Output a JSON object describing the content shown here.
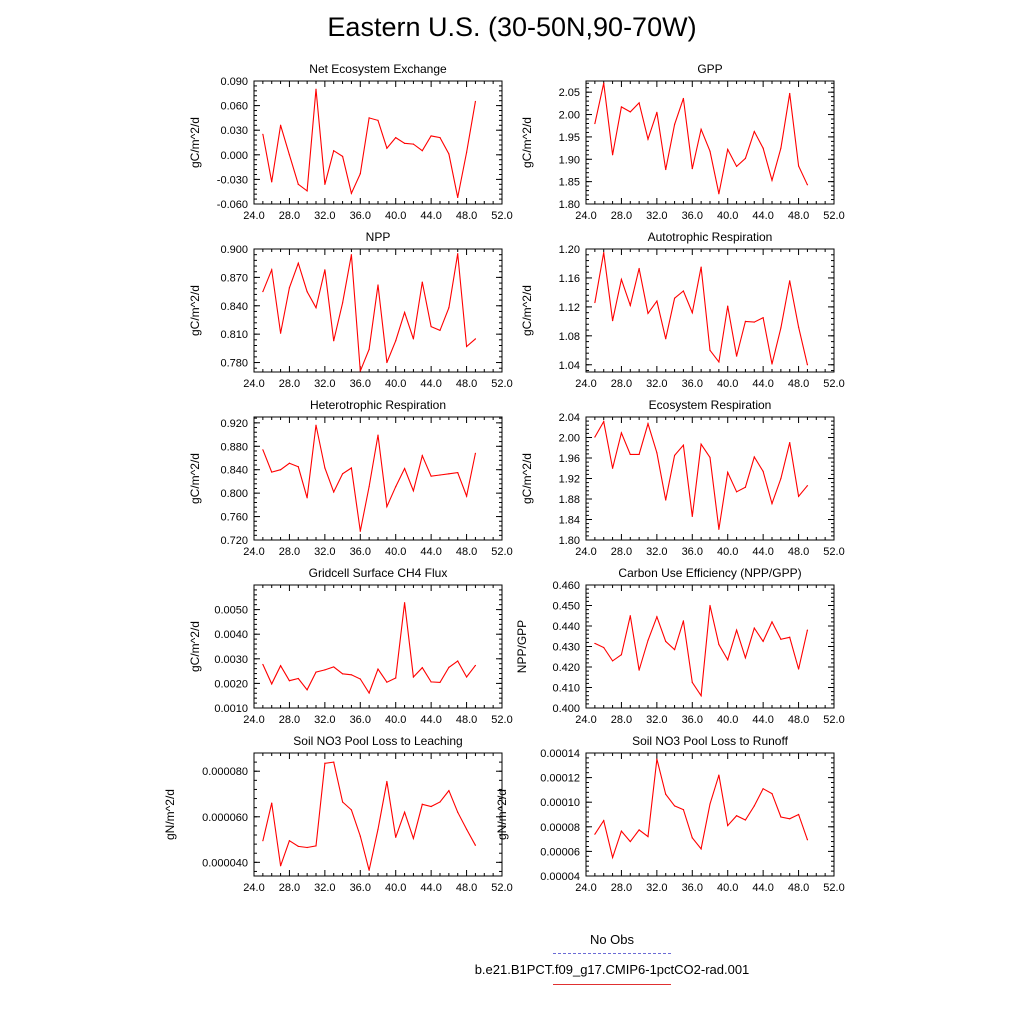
{
  "title": "Eastern U.S. (30-50N,90-70W)",
  "legend": {
    "obs_label": "No Obs",
    "obs_color": "#6b6bd6",
    "model_label": "b.e21.B1PCT.f09_g17.CMIP6-1pctCO2-rad.001",
    "model_color": "#ff0000"
  },
  "chart_data": [
    {
      "type": "line",
      "title": "Net Ecosystem Exchange",
      "ylabel": "gC/m^2/d",
      "xlim": [
        24,
        52
      ],
      "ylim": [
        -0.06,
        0.09
      ],
      "x_ticks": [
        "24.0",
        "28.0",
        "32.0",
        "36.0",
        "40.0",
        "44.0",
        "48.0",
        "52.0"
      ],
      "y_ticks": [
        "-0.060",
        "-0.030",
        "0.000",
        "0.030",
        "0.060",
        "0.090"
      ],
      "x": [
        25,
        26,
        27,
        28,
        29,
        30,
        31,
        32,
        33,
        34,
        35,
        36,
        37,
        38,
        39,
        40,
        41,
        42,
        43,
        44,
        45,
        46,
        47,
        48,
        49
      ],
      "values": [
        0.025,
        -0.033,
        0.036,
        0.0,
        -0.036,
        -0.044,
        0.08,
        -0.036,
        0.005,
        -0.002,
        -0.047,
        -0.023,
        0.045,
        0.042,
        0.008,
        0.021,
        0.014,
        0.013,
        0.005,
        0.023,
        0.021,
        0.001,
        -0.052,
        0.003,
        0.065
      ]
    },
    {
      "type": "line",
      "title": "GPP",
      "ylabel": "gC/m^2/d",
      "xlim": [
        24,
        52
      ],
      "ylim": [
        1.8,
        2.075
      ],
      "x_ticks": [
        "24.0",
        "28.0",
        "32.0",
        "36.0",
        "40.0",
        "44.0",
        "48.0",
        "52.0"
      ],
      "y_ticks": [
        "1.80",
        "1.85",
        "1.90",
        "1.95",
        "2.00",
        "2.05"
      ],
      "x": [
        25,
        26,
        27,
        28,
        29,
        30,
        31,
        32,
        33,
        34,
        35,
        36,
        37,
        38,
        39,
        40,
        41,
        42,
        43,
        44,
        45,
        46,
        47,
        48,
        49
      ],
      "values": [
        1.98,
        2.07,
        1.91,
        2.017,
        2.006,
        2.026,
        1.945,
        2.005,
        1.877,
        1.978,
        2.036,
        1.879,
        1.967,
        1.918,
        1.823,
        1.922,
        1.884,
        1.902,
        1.962,
        1.925,
        1.853,
        1.925,
        2.047,
        1.885,
        1.843
      ]
    },
    {
      "type": "line",
      "title": "NPP",
      "ylabel": "gC/m^2/d",
      "xlim": [
        24,
        52
      ],
      "ylim": [
        0.77,
        0.9
      ],
      "x_ticks": [
        "24.0",
        "28.0",
        "32.0",
        "36.0",
        "40.0",
        "44.0",
        "48.0",
        "52.0"
      ],
      "y_ticks": [
        "0.780",
        "0.810",
        "0.840",
        "0.870",
        "0.900"
      ],
      "x": [
        25,
        26,
        27,
        28,
        29,
        30,
        31,
        32,
        33,
        34,
        35,
        36,
        37,
        38,
        39,
        40,
        41,
        42,
        43,
        44,
        45,
        46,
        47,
        48,
        49
      ],
      "values": [
        0.855,
        0.878,
        0.811,
        0.859,
        0.885,
        0.855,
        0.838,
        0.878,
        0.803,
        0.843,
        0.894,
        0.771,
        0.794,
        0.862,
        0.78,
        0.803,
        0.833,
        0.805,
        0.865,
        0.818,
        0.814,
        0.838,
        0.895,
        0.797,
        0.805
      ]
    },
    {
      "type": "line",
      "title": "Autotrophic Respiration",
      "ylabel": "gC/m^2/d",
      "xlim": [
        24,
        52
      ],
      "ylim": [
        1.03,
        1.2
      ],
      "x_ticks": [
        "24.0",
        "28.0",
        "32.0",
        "36.0",
        "40.0",
        "44.0",
        "48.0",
        "52.0"
      ],
      "y_ticks": [
        "1.04",
        "1.08",
        "1.12",
        "1.16",
        "1.20"
      ],
      "x": [
        25,
        26,
        27,
        28,
        29,
        30,
        31,
        32,
        33,
        34,
        35,
        36,
        37,
        38,
        39,
        40,
        41,
        42,
        43,
        44,
        45,
        46,
        47,
        48,
        49
      ],
      "values": [
        1.126,
        1.195,
        1.101,
        1.158,
        1.122,
        1.173,
        1.111,
        1.128,
        1.076,
        1.132,
        1.142,
        1.112,
        1.175,
        1.06,
        1.044,
        1.121,
        1.052,
        1.1,
        1.099,
        1.105,
        1.041,
        1.091,
        1.156,
        1.092,
        1.04
      ]
    },
    {
      "type": "line",
      "title": "Heterotrophic Respiration",
      "ylabel": "gC/m^2/d",
      "xlim": [
        24,
        52
      ],
      "ylim": [
        0.72,
        0.93
      ],
      "x_ticks": [
        "24.0",
        "28.0",
        "32.0",
        "36.0",
        "40.0",
        "44.0",
        "48.0",
        "52.0"
      ],
      "y_ticks": [
        "0.720",
        "0.760",
        "0.800",
        "0.840",
        "0.880",
        "0.920"
      ],
      "x": [
        25,
        26,
        27,
        28,
        29,
        30,
        31,
        32,
        33,
        34,
        35,
        36,
        37,
        38,
        39,
        40,
        41,
        42,
        43,
        44,
        45,
        46,
        47,
        48,
        49
      ],
      "values": [
        0.874,
        0.836,
        0.84,
        0.851,
        0.845,
        0.792,
        0.916,
        0.843,
        0.802,
        0.833,
        0.843,
        0.735,
        0.811,
        0.899,
        0.777,
        0.811,
        0.842,
        0.804,
        0.864,
        0.829,
        0.831,
        0.833,
        0.835,
        0.795,
        0.868
      ]
    },
    {
      "type": "line",
      "title": "Ecosystem Respiration",
      "ylabel": "gC/m^2/d",
      "xlim": [
        24,
        52
      ],
      "ylim": [
        1.8,
        2.04
      ],
      "x_ticks": [
        "24.0",
        "28.0",
        "32.0",
        "36.0",
        "40.0",
        "44.0",
        "48.0",
        "52.0"
      ],
      "y_ticks": [
        "1.80",
        "1.84",
        "1.88",
        "1.92",
        "1.96",
        "2.00",
        "2.04"
      ],
      "x": [
        25,
        26,
        27,
        28,
        29,
        30,
        31,
        32,
        33,
        34,
        35,
        36,
        37,
        38,
        39,
        40,
        41,
        42,
        43,
        44,
        45,
        46,
        47,
        48,
        49
      ],
      "values": [
        2.001,
        2.031,
        1.94,
        2.009,
        1.967,
        1.967,
        2.027,
        1.97,
        1.878,
        1.965,
        1.985,
        1.846,
        1.987,
        1.961,
        1.821,
        1.932,
        1.894,
        1.903,
        1.962,
        1.934,
        1.871,
        1.92,
        1.99,
        1.885,
        1.906
      ]
    },
    {
      "type": "line",
      "title": "Gridcell Surface CH4 Flux",
      "ylabel": "gC/m^2/d",
      "xlim": [
        24,
        52
      ],
      "ylim": [
        0.001,
        0.006
      ],
      "x_ticks": [
        "24.0",
        "28.0",
        "32.0",
        "36.0",
        "40.0",
        "44.0",
        "48.0",
        "52.0"
      ],
      "y_ticks": [
        "0.0010",
        "0.0020",
        "0.0030",
        "0.0040",
        "0.0050"
      ],
      "x": [
        25,
        26,
        27,
        28,
        29,
        30,
        31,
        32,
        33,
        34,
        35,
        36,
        37,
        38,
        39,
        40,
        41,
        42,
        43,
        44,
        45,
        46,
        47,
        48,
        49
      ],
      "values": [
        0.00277,
        0.00198,
        0.00272,
        0.00211,
        0.0022,
        0.00174,
        0.00246,
        0.00255,
        0.00267,
        0.00239,
        0.00235,
        0.00218,
        0.00161,
        0.00258,
        0.00205,
        0.00222,
        0.00528,
        0.00226,
        0.00264,
        0.00206,
        0.00204,
        0.00265,
        0.00291,
        0.00226,
        0.00273
      ]
    },
    {
      "type": "line",
      "title": "Carbon Use Efficiency (NPP/GPP)",
      "ylabel": "NPP/GPP",
      "xlim": [
        24,
        52
      ],
      "ylim": [
        0.4,
        0.46
      ],
      "x_ticks": [
        "24.0",
        "28.0",
        "32.0",
        "36.0",
        "40.0",
        "44.0",
        "48.0",
        "52.0"
      ],
      "y_ticks": [
        "0.400",
        "0.410",
        "0.420",
        "0.430",
        "0.440",
        "0.450",
        "0.460"
      ],
      "x": [
        25,
        26,
        27,
        28,
        29,
        30,
        31,
        32,
        33,
        34,
        35,
        36,
        37,
        38,
        39,
        40,
        41,
        42,
        43,
        44,
        45,
        46,
        47,
        48,
        49
      ],
      "values": [
        0.4315,
        0.4295,
        0.423,
        0.426,
        0.445,
        0.4185,
        0.433,
        0.4445,
        0.4325,
        0.4285,
        0.4425,
        0.4125,
        0.406,
        0.45,
        0.431,
        0.4235,
        0.438,
        0.4245,
        0.439,
        0.4325,
        0.442,
        0.4335,
        0.4345,
        0.419,
        0.438
      ]
    },
    {
      "type": "line",
      "title": "Soil NO3 Pool Loss to Leaching",
      "ylabel": "gN/m^2/d",
      "xlim": [
        24,
        52
      ],
      "ylim": [
        3.4e-05,
        8.8e-05
      ],
      "x_ticks": [
        "24.0",
        "28.0",
        "32.0",
        "36.0",
        "40.0",
        "44.0",
        "48.0",
        "52.0"
      ],
      "y_ticks": [
        "0.000040",
        "0.000060",
        "0.000080"
      ],
      "x": [
        25,
        26,
        27,
        28,
        29,
        30,
        31,
        32,
        33,
        34,
        35,
        36,
        37,
        38,
        39,
        40,
        41,
        42,
        43,
        44,
        45,
        46,
        47,
        48,
        49
      ],
      "values": [
        4.95e-05,
        6.6e-05,
        3.85e-05,
        4.95e-05,
        4.7e-05,
        4.65e-05,
        4.72e-05,
        8.35e-05,
        8.4e-05,
        6.65e-05,
        6.3e-05,
        5.15e-05,
        3.65e-05,
        5.45e-05,
        7.55e-05,
        5.1e-05,
        6.2e-05,
        5.05e-05,
        6.55e-05,
        6.45e-05,
        6.65e-05,
        7.15e-05,
        6.2e-05,
        5.45e-05,
        4.75e-05
      ]
    },
    {
      "type": "line",
      "title": "Soil NO3 Pool Loss to Runoff",
      "ylabel": "gN/m^2/d",
      "xlim": [
        24,
        52
      ],
      "ylim": [
        4e-05,
        0.00014
      ],
      "x_ticks": [
        "24.0",
        "28.0",
        "32.0",
        "36.0",
        "40.0",
        "44.0",
        "48.0",
        "52.0"
      ],
      "y_ticks": [
        "0.00004",
        "0.00006",
        "0.00008",
        "0.00010",
        "0.00012",
        "0.00014"
      ],
      "x": [
        25,
        26,
        27,
        28,
        29,
        30,
        31,
        32,
        33,
        34,
        35,
        36,
        37,
        38,
        39,
        40,
        41,
        42,
        43,
        44,
        45,
        46,
        47,
        48,
        49
      ],
      "values": [
        7.4e-05,
        8.5e-05,
        5.5e-05,
        7.65e-05,
        6.8e-05,
        7.75e-05,
        7.2e-05,
        0.000135,
        0.0001065,
        9.7e-05,
        9.4e-05,
        7.1e-05,
        6.2e-05,
        9.85e-05,
        0.000122,
        8.1e-05,
        8.9e-05,
        8.55e-05,
        9.7e-05,
        0.000111,
        0.000107,
        8.8e-05,
        8.65e-05,
        9e-05,
        6.95e-05
      ]
    }
  ]
}
